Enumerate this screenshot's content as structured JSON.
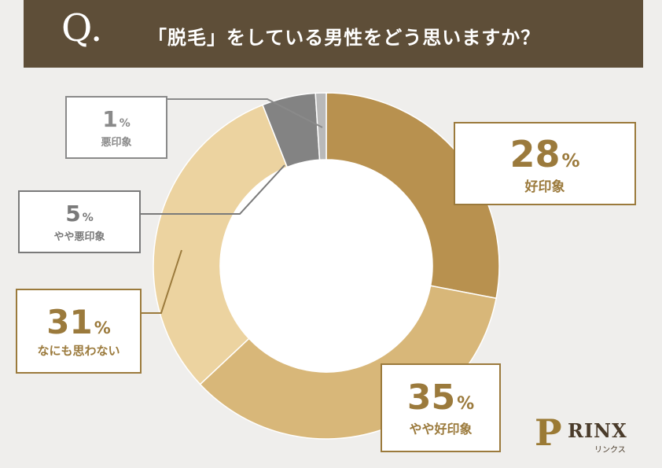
{
  "header": {
    "q_letter": "Q.",
    "title": "「脱毛」をしている男性をどう思いますか？"
  },
  "chart_data": {
    "type": "pie",
    "categories": [
      "好印象",
      "やや好印象",
      "なにも思わない",
      "やや悪印象",
      "悪印象"
    ],
    "values": [
      28,
      35,
      31,
      5,
      1
    ],
    "unit": "%",
    "colors": [
      "#b8914f",
      "#d8b779",
      "#ecd3a0",
      "#838383",
      "#b9b9b9"
    ],
    "label_colors": [
      "#9b7a3c",
      "#9b7a3c",
      "#9b7a3c",
      "#7a7a7a",
      "#8a8a8a"
    ]
  },
  "logo": {
    "mark": "P",
    "word": "RINX",
    "sub": "リンクス"
  }
}
